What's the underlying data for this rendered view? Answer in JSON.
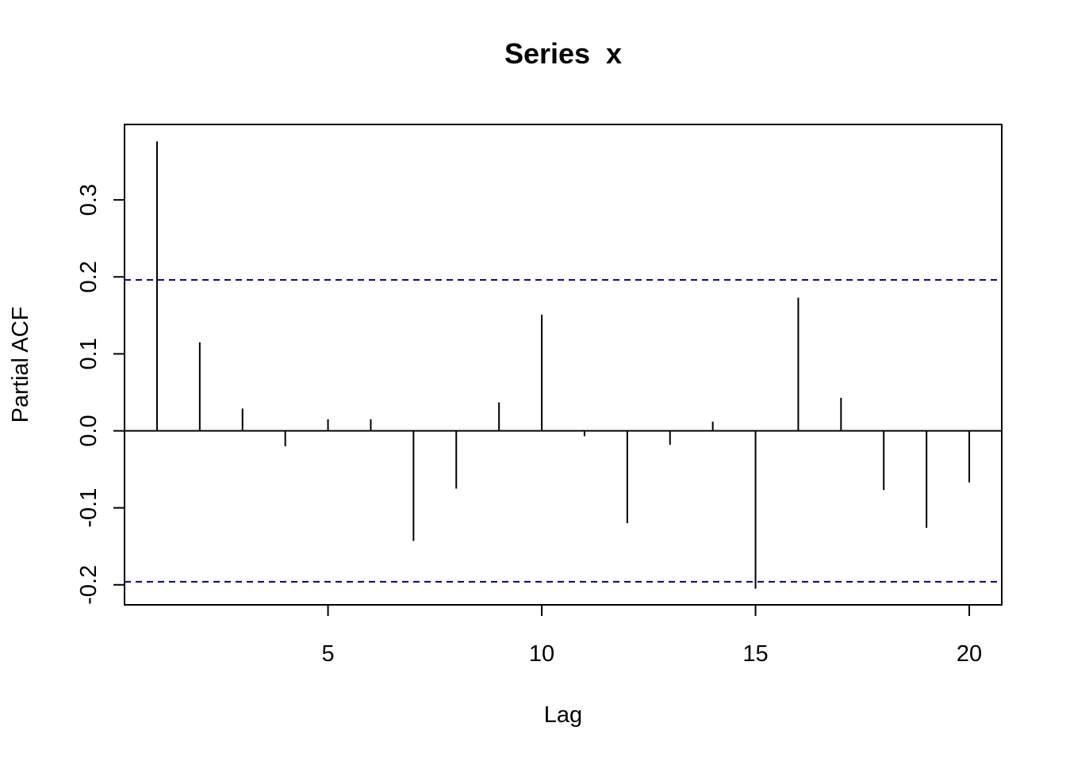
{
  "chart_data": {
    "type": "bar",
    "title": "Series  x",
    "xlabel": "Lag",
    "ylabel": "Partial ACF",
    "x": [
      1,
      2,
      3,
      4,
      5,
      6,
      7,
      8,
      9,
      10,
      11,
      12,
      13,
      14,
      15,
      16,
      17,
      18,
      19,
      20
    ],
    "values": [
      0.376,
      0.115,
      0.029,
      -0.02,
      0.015,
      0.015,
      -0.143,
      -0.075,
      0.037,
      0.151,
      -0.007,
      -0.12,
      -0.018,
      0.012,
      -0.205,
      0.173,
      0.043,
      -0.077,
      -0.126,
      -0.067
    ],
    "xlim": [
      0.24,
      20.76
    ],
    "ylim": [
      -0.226,
      0.398
    ],
    "x_ticks": [
      5,
      10,
      15,
      20
    ],
    "x_tick_labels": [
      "5",
      "10",
      "15",
      "20"
    ],
    "y_ticks": [
      -0.2,
      -0.1,
      0.0,
      0.1,
      0.2,
      0.3
    ],
    "y_tick_labels": [
      "-0.2",
      "-0.1",
      "0.0",
      "0.1",
      "0.2",
      "0.3"
    ],
    "confidence_bound": 0.196,
    "ci_color": "#00008b",
    "bar_color": "#000000",
    "grid": false
  }
}
